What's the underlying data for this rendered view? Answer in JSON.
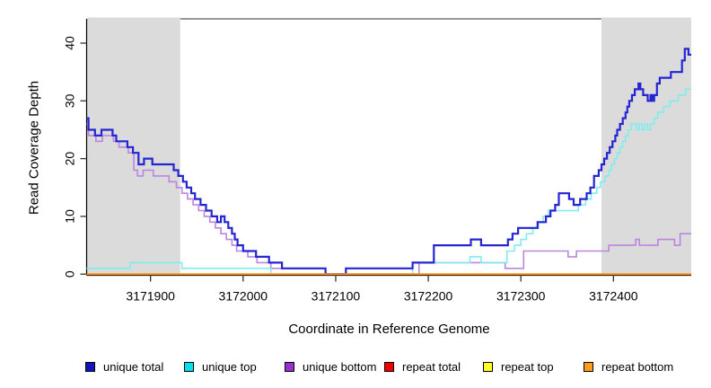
{
  "chart_data": {
    "type": "line",
    "subtype": "step",
    "title": "",
    "xlabel": "Coordinate in Reference Genome",
    "ylabel": "Read Coverage Depth",
    "xlim": [
      3171831,
      3172484
    ],
    "ylim": [
      -0.2,
      44.2
    ],
    "grid": false,
    "legend_position": "bottom",
    "shade_color": "#DBDBDB",
    "shaded_regions": [
      [
        3171831,
        3171932
      ],
      [
        3172387,
        3172484
      ]
    ],
    "x_ticks": [
      {
        "value": 3171900,
        "label": "3171900"
      },
      {
        "value": 3172000,
        "label": "3172000"
      },
      {
        "value": 3172100,
        "label": "3172100"
      },
      {
        "value": 3172200,
        "label": "3172200"
      },
      {
        "value": 3172300,
        "label": "3172300"
      },
      {
        "value": 3172400,
        "label": "3172400"
      }
    ],
    "y_ticks": [
      {
        "value": 0,
        "label": "0"
      },
      {
        "value": 10,
        "label": "10"
      },
      {
        "value": 20,
        "label": "20"
      },
      {
        "value": 30,
        "label": "30"
      },
      {
        "value": 40,
        "label": "40"
      }
    ],
    "draw_order": [
      3,
      4,
      2,
      1,
      0,
      5
    ],
    "series": [
      {
        "name": "unique total",
        "swatch_color": "#1414BE",
        "line_color": "#2525D2",
        "points": [
          [
            3171831,
            27
          ],
          [
            3171833,
            25
          ],
          [
            3171840,
            24
          ],
          [
            3171847,
            25
          ],
          [
            3171859,
            24
          ],
          [
            3171863,
            23
          ],
          [
            3171875,
            22
          ],
          [
            3171881,
            21
          ],
          [
            3171887,
            19
          ],
          [
            3171893,
            20
          ],
          [
            3171902,
            19
          ],
          [
            3171925,
            18
          ],
          [
            3171930,
            17
          ],
          [
            3171935,
            16
          ],
          [
            3171939,
            15
          ],
          [
            3171944,
            14
          ],
          [
            3171948,
            13
          ],
          [
            3171954,
            12
          ],
          [
            3171960,
            11
          ],
          [
            3171966,
            10
          ],
          [
            3171972,
            9
          ],
          [
            3171976,
            10
          ],
          [
            3171980,
            9
          ],
          [
            3171984,
            8
          ],
          [
            3171988,
            7
          ],
          [
            3171991,
            6
          ],
          [
            3171994,
            5
          ],
          [
            3172000,
            4
          ],
          [
            3172014,
            3
          ],
          [
            3172028,
            2
          ],
          [
            3172042,
            1
          ],
          [
            3172089,
            0
          ],
          [
            3172111,
            1
          ],
          [
            3172183,
            2
          ],
          [
            3172206,
            5
          ],
          [
            3172246,
            6
          ],
          [
            3172257,
            5
          ],
          [
            3172286,
            6
          ],
          [
            3172291,
            7
          ],
          [
            3172297,
            8
          ],
          [
            3172318,
            9
          ],
          [
            3172327,
            10
          ],
          [
            3172332,
            11
          ],
          [
            3172337,
            12
          ],
          [
            3172341,
            14
          ],
          [
            3172352,
            13
          ],
          [
            3172357,
            12
          ],
          [
            3172364,
            13
          ],
          [
            3172371,
            14
          ],
          [
            3172375,
            15
          ],
          [
            3172379,
            17
          ],
          [
            3172384,
            18
          ],
          [
            3172387,
            19
          ],
          [
            3172390,
            20
          ],
          [
            3172393,
            21
          ],
          [
            3172396,
            22
          ],
          [
            3172399,
            23
          ],
          [
            3172402,
            24
          ],
          [
            3172404,
            25
          ],
          [
            3172407,
            26
          ],
          [
            3172410,
            27
          ],
          [
            3172413,
            28
          ],
          [
            3172415,
            29
          ],
          [
            3172417,
            30
          ],
          [
            3172420,
            31
          ],
          [
            3172423,
            32
          ],
          [
            3172427,
            33
          ],
          [
            3172429,
            32
          ],
          [
            3172432,
            31
          ],
          [
            3172437,
            30
          ],
          [
            3172440,
            31
          ],
          [
            3172442,
            30
          ],
          [
            3172444,
            31
          ],
          [
            3172447,
            33
          ],
          [
            3172450,
            34
          ],
          [
            3172462,
            35
          ],
          [
            3172474,
            37
          ],
          [
            3172477,
            39
          ],
          [
            3172481,
            38
          ]
        ]
      },
      {
        "name": "unique top",
        "swatch_color": "#00E0EC",
        "line_color": "#7FEDED",
        "points": [
          [
            3171831,
            1
          ],
          [
            3171878,
            2
          ],
          [
            3171934,
            1
          ],
          [
            3172030,
            0
          ],
          [
            3172183,
            2
          ],
          [
            3172245,
            3
          ],
          [
            3172257,
            2
          ],
          [
            3172285,
            4
          ],
          [
            3172293,
            5
          ],
          [
            3172300,
            6
          ],
          [
            3172306,
            7
          ],
          [
            3172313,
            8
          ],
          [
            3172319,
            9
          ],
          [
            3172324,
            10
          ],
          [
            3172330,
            11
          ],
          [
            3172362,
            12
          ],
          [
            3172370,
            13
          ],
          [
            3172376,
            14
          ],
          [
            3172382,
            15
          ],
          [
            3172386,
            16
          ],
          [
            3172391,
            17
          ],
          [
            3172395,
            18
          ],
          [
            3172398,
            19
          ],
          [
            3172401,
            20
          ],
          [
            3172404,
            21
          ],
          [
            3172407,
            22
          ],
          [
            3172410,
            23
          ],
          [
            3172413,
            24
          ],
          [
            3172416,
            25
          ],
          [
            3172419,
            26
          ],
          [
            3172425,
            25
          ],
          [
            3172428,
            26
          ],
          [
            3172431,
            25
          ],
          [
            3172434,
            26
          ],
          [
            3172437,
            25
          ],
          [
            3172440,
            26
          ],
          [
            3172444,
            27
          ],
          [
            3172448,
            28
          ],
          [
            3172454,
            29
          ],
          [
            3172461,
            30
          ],
          [
            3172470,
            31
          ],
          [
            3172478,
            32
          ]
        ]
      },
      {
        "name": "unique bottom",
        "swatch_color": "#9932CC",
        "line_color": "#BB86DF",
        "points": [
          [
            3171831,
            26
          ],
          [
            3171833,
            24
          ],
          [
            3171841,
            23
          ],
          [
            3171848,
            24
          ],
          [
            3171860,
            23
          ],
          [
            3171866,
            22
          ],
          [
            3171876,
            21
          ],
          [
            3171882,
            18
          ],
          [
            3171886,
            17
          ],
          [
            3171892,
            18
          ],
          [
            3171903,
            17
          ],
          [
            3171920,
            16
          ],
          [
            3171928,
            15
          ],
          [
            3171934,
            14
          ],
          [
            3171940,
            13
          ],
          [
            3171946,
            12
          ],
          [
            3171952,
            11
          ],
          [
            3171958,
            10
          ],
          [
            3171964,
            9
          ],
          [
            3171970,
            8
          ],
          [
            3171976,
            7
          ],
          [
            3171982,
            6
          ],
          [
            3171988,
            5
          ],
          [
            3171993,
            4
          ],
          [
            3172005,
            3
          ],
          [
            3172015,
            2
          ],
          [
            3172030,
            1
          ],
          [
            3172089,
            0
          ],
          [
            3172190,
            2
          ],
          [
            3172283,
            1
          ],
          [
            3172303,
            4
          ],
          [
            3172351,
            3
          ],
          [
            3172360,
            4
          ],
          [
            3172395,
            5
          ],
          [
            3172424,
            6
          ],
          [
            3172428,
            5
          ],
          [
            3172448,
            6
          ],
          [
            3172466,
            5
          ],
          [
            3172472,
            7
          ]
        ]
      },
      {
        "name": "repeat total",
        "swatch_color": "#EE0000",
        "line_color": "#DD0000",
        "points": [
          [
            3171831,
            0
          ]
        ]
      },
      {
        "name": "repeat top",
        "swatch_color": "#FFFF2A",
        "line_color": "#FFEE00",
        "points": [
          [
            3171831,
            0
          ]
        ]
      },
      {
        "name": "repeat bottom",
        "swatch_color": "#FF9C18",
        "line_color": "#FF9015",
        "points": [
          [
            3171831,
            0
          ]
        ]
      }
    ]
  }
}
